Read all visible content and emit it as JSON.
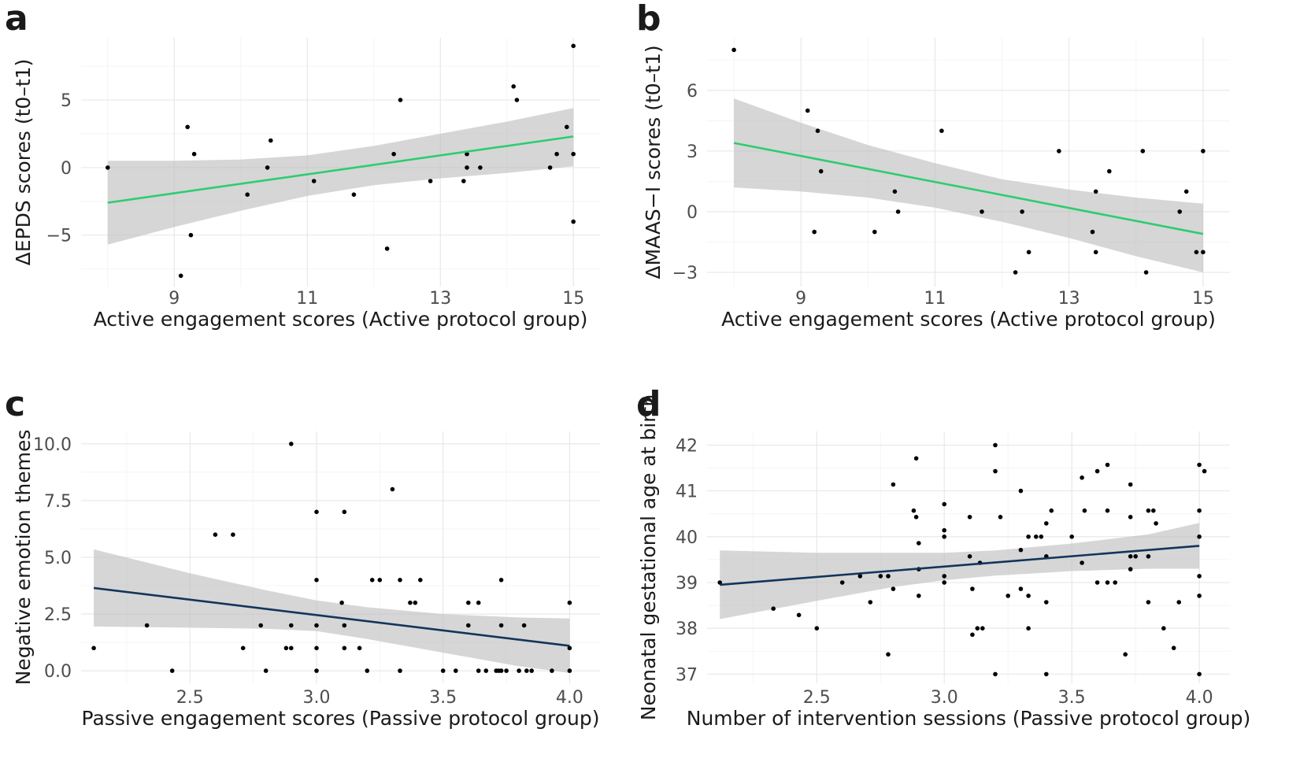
{
  "chart_data": [
    {
      "id": "a",
      "type": "scatter",
      "panel_letter": "a",
      "xlabel": "Active engagement scores (Active protocol group)",
      "ylabel": "ΔEPDS scores (t0–t1)",
      "xlim": [
        7.6,
        15.4
      ],
      "ylim": [
        -8.8,
        9.6
      ],
      "x_ticks": [
        9,
        11,
        13,
        15
      ],
      "x_tick_labels": [
        "9",
        "11",
        "13",
        "15"
      ],
      "y_ticks": [
        -5,
        0,
        5
      ],
      "y_tick_labels": [
        "−5",
        "0",
        "5"
      ],
      "line_color": "#2ecc71",
      "fit": {
        "x0": 8,
        "y0": -2.6,
        "x1": 15,
        "y1": 2.3
      },
      "ci": {
        "x": [
          8,
          9,
          10,
          11,
          12,
          13,
          14,
          15
        ],
        "lower": [
          -5.7,
          -4.4,
          -3.2,
          -2.1,
          -1.3,
          -0.8,
          -0.4,
          0.1
        ],
        "upper": [
          0.5,
          0.5,
          0.6,
          0.9,
          1.6,
          2.5,
          3.4,
          4.4
        ]
      },
      "points": [
        [
          8,
          0
        ],
        [
          9.1,
          -8
        ],
        [
          9.2,
          3
        ],
        [
          9.25,
          -5
        ],
        [
          9.3,
          1
        ],
        [
          10.1,
          -2
        ],
        [
          10.4,
          0
        ],
        [
          10.45,
          2
        ],
        [
          11.1,
          -1
        ],
        [
          11.7,
          -2
        ],
        [
          12.2,
          -6
        ],
        [
          12.3,
          1
        ],
        [
          12.4,
          5
        ],
        [
          12.85,
          -1
        ],
        [
          13.35,
          -1
        ],
        [
          13.4,
          1
        ],
        [
          13.4,
          0
        ],
        [
          13.6,
          0
        ],
        [
          14.1,
          6
        ],
        [
          14.15,
          5
        ],
        [
          14.65,
          0
        ],
        [
          14.75,
          1
        ],
        [
          14.9,
          3
        ],
        [
          15,
          9
        ],
        [
          15,
          1
        ],
        [
          15,
          -4
        ]
      ]
    },
    {
      "id": "b",
      "type": "scatter",
      "panel_letter": "b",
      "xlabel": "Active engagement scores (Active protocol group)",
      "ylabel": "ΔMAAS−I scores (t0–t1)",
      "xlim": [
        7.6,
        15.4
      ],
      "ylim": [
        -3.7,
        8.6
      ],
      "x_ticks": [
        9,
        11,
        13,
        15
      ],
      "x_tick_labels": [
        "9",
        "11",
        "13",
        "15"
      ],
      "y_ticks": [
        -3,
        0,
        3,
        6
      ],
      "y_tick_labels": [
        "−3",
        "0",
        "3",
        "6"
      ],
      "line_color": "#2ecc71",
      "fit": {
        "x0": 8,
        "y0": 3.4,
        "x1": 15,
        "y1": -1.1
      },
      "ci": {
        "x": [
          8,
          9,
          10,
          11,
          12,
          13,
          14,
          15
        ],
        "lower": [
          1.2,
          1.0,
          0.7,
          0.2,
          -0.5,
          -1.3,
          -2.2,
          -3.0
        ],
        "upper": [
          5.6,
          4.4,
          3.3,
          2.4,
          1.6,
          1.1,
          0.7,
          0.4
        ]
      },
      "points": [
        [
          8,
          8
        ],
        [
          9.1,
          5
        ],
        [
          9.2,
          -1
        ],
        [
          9.25,
          4
        ],
        [
          9.3,
          2
        ],
        [
          10.1,
          -1
        ],
        [
          10.4,
          1
        ],
        [
          10.45,
          0
        ],
        [
          11.1,
          4
        ],
        [
          11.7,
          0
        ],
        [
          12.2,
          -3
        ],
        [
          12.3,
          0
        ],
        [
          12.4,
          -2
        ],
        [
          12.85,
          3
        ],
        [
          13.35,
          -1
        ],
        [
          13.4,
          1
        ],
        [
          13.4,
          -2
        ],
        [
          13.6,
          2
        ],
        [
          14.1,
          3
        ],
        [
          14.15,
          -3
        ],
        [
          14.65,
          0
        ],
        [
          14.75,
          1
        ],
        [
          14.9,
          -2
        ],
        [
          15,
          3
        ],
        [
          15,
          -2
        ]
      ]
    },
    {
      "id": "c",
      "type": "scatter",
      "panel_letter": "c",
      "xlabel": "Passive engagement scores (Passive protocol group)",
      "ylabel": "Negative emotion themes",
      "xlim": [
        2.07,
        4.12
      ],
      "ylim": [
        -0.55,
        10.55
      ],
      "x_ticks": [
        2.5,
        3.0,
        3.5,
        4.0
      ],
      "x_tick_labels": [
        "2.5",
        "3.0",
        "3.5",
        "4.0"
      ],
      "y_ticks": [
        0,
        2.5,
        5,
        7.5,
        10
      ],
      "y_tick_labels": [
        "0.0",
        "2.5",
        "5.0",
        "7.5",
        "10.0"
      ],
      "line_color": "#12355b",
      "fit": {
        "x0": 2.12,
        "y0": 3.65,
        "x1": 4.0,
        "y1": 1.1
      },
      "ci": {
        "x": [
          2.12,
          2.5,
          2.8,
          3.0,
          3.2,
          3.5,
          3.8,
          4.0
        ],
        "lower": [
          1.95,
          1.9,
          1.85,
          1.75,
          1.4,
          0.8,
          0.2,
          -0.1
        ],
        "upper": [
          5.35,
          4.3,
          3.55,
          3.1,
          2.8,
          2.5,
          2.35,
          2.3
        ]
      },
      "points": [
        [
          2.12,
          1
        ],
        [
          2.33,
          2
        ],
        [
          2.43,
          0
        ],
        [
          2.6,
          6
        ],
        [
          2.67,
          6
        ],
        [
          2.71,
          1
        ],
        [
          2.78,
          2
        ],
        [
          2.8,
          0
        ],
        [
          2.88,
          1
        ],
        [
          2.9,
          1
        ],
        [
          2.9,
          10
        ],
        [
          2.9,
          2
        ],
        [
          3.0,
          7
        ],
        [
          3.0,
          4
        ],
        [
          3.0,
          2
        ],
        [
          3.0,
          1
        ],
        [
          3.0,
          0
        ],
        [
          3.1,
          3
        ],
        [
          3.11,
          7
        ],
        [
          3.11,
          2
        ],
        [
          3.11,
          1
        ],
        [
          3.17,
          1
        ],
        [
          3.2,
          0
        ],
        [
          3.22,
          4
        ],
        [
          3.25,
          4
        ],
        [
          3.3,
          8
        ],
        [
          3.33,
          4
        ],
        [
          3.33,
          0
        ],
        [
          3.37,
          3
        ],
        [
          3.39,
          3
        ],
        [
          3.41,
          4
        ],
        [
          3.5,
          0
        ],
        [
          3.55,
          0
        ],
        [
          3.6,
          3
        ],
        [
          3.6,
          2
        ],
        [
          3.64,
          3
        ],
        [
          3.64,
          0
        ],
        [
          3.67,
          0
        ],
        [
          3.71,
          0
        ],
        [
          3.72,
          0
        ],
        [
          3.73,
          0
        ],
        [
          3.73,
          4
        ],
        [
          3.73,
          2
        ],
        [
          3.75,
          0
        ],
        [
          3.8,
          0
        ],
        [
          3.82,
          2
        ],
        [
          3.83,
          0
        ],
        [
          3.85,
          0
        ],
        [
          3.93,
          0
        ],
        [
          4.0,
          3
        ],
        [
          4.0,
          1
        ],
        [
          4.0,
          0
        ]
      ]
    },
    {
      "id": "d",
      "type": "scatter",
      "panel_letter": "d",
      "xlabel": "Number of intervention sessions (Passive protocol group)",
      "ylabel": "Neonatal gestational age at birth",
      "xlim": [
        2.07,
        4.12
      ],
      "ylim": [
        36.8,
        42.3
      ],
      "x_ticks": [
        2.5,
        3.0,
        3.5,
        4.0
      ],
      "x_tick_labels": [
        "2.5",
        "3.0",
        "3.5",
        "4.0"
      ],
      "y_ticks": [
        37,
        38,
        39,
        40,
        41,
        42
      ],
      "y_tick_labels": [
        "37",
        "38",
        "39",
        "40",
        "41",
        "42"
      ],
      "line_color": "#12355b",
      "fit": {
        "x0": 2.12,
        "y0": 38.95,
        "x1": 4.0,
        "y1": 39.8
      },
      "ci": {
        "x": [
          2.12,
          2.5,
          2.8,
          3.0,
          3.2,
          3.5,
          3.8,
          4.0
        ],
        "lower": [
          38.2,
          38.6,
          38.9,
          39.05,
          39.15,
          39.25,
          39.3,
          39.3
        ],
        "upper": [
          39.7,
          39.65,
          39.65,
          39.65,
          39.7,
          39.85,
          40.05,
          40.3
        ]
      },
      "points": [
        [
          2.12,
          39
        ],
        [
          2.33,
          38.43
        ],
        [
          2.43,
          38.29
        ],
        [
          2.5,
          38
        ],
        [
          2.6,
          39
        ],
        [
          2.67,
          39.14
        ],
        [
          2.71,
          38.57
        ],
        [
          2.75,
          39.14
        ],
        [
          2.78,
          37.43
        ],
        [
          2.78,
          39.14
        ],
        [
          2.8,
          41.14
        ],
        [
          2.8,
          38.86
        ],
        [
          2.88,
          40.57
        ],
        [
          2.89,
          41.71
        ],
        [
          2.89,
          40.43
        ],
        [
          2.9,
          39.86
        ],
        [
          2.9,
          39.29
        ],
        [
          2.9,
          38.71
        ],
        [
          3.0,
          40.71
        ],
        [
          3.0,
          40.14
        ],
        [
          3.0,
          40
        ],
        [
          3.0,
          39.14
        ],
        [
          3.0,
          39
        ],
        [
          3.1,
          40.43
        ],
        [
          3.1,
          39.57
        ],
        [
          3.11,
          38.86
        ],
        [
          3.11,
          37.86
        ],
        [
          3.13,
          38
        ],
        [
          3.14,
          39.43
        ],
        [
          3.15,
          38
        ],
        [
          3.2,
          42
        ],
        [
          3.2,
          41.43
        ],
        [
          3.2,
          37
        ],
        [
          3.22,
          40.43
        ],
        [
          3.25,
          38.71
        ],
        [
          3.3,
          41
        ],
        [
          3.3,
          39.71
        ],
        [
          3.3,
          38.86
        ],
        [
          3.33,
          40
        ],
        [
          3.33,
          38.71
        ],
        [
          3.33,
          38
        ],
        [
          3.36,
          40
        ],
        [
          3.38,
          40
        ],
        [
          3.4,
          40.29
        ],
        [
          3.4,
          39.57
        ],
        [
          3.4,
          38.57
        ],
        [
          3.4,
          37
        ],
        [
          3.42,
          40.57
        ],
        [
          3.5,
          40
        ],
        [
          3.54,
          41.29
        ],
        [
          3.55,
          40.57
        ],
        [
          3.54,
          39.43
        ],
        [
          3.6,
          41.43
        ],
        [
          3.6,
          39
        ],
        [
          3.64,
          41.57
        ],
        [
          3.64,
          40.57
        ],
        [
          3.64,
          39
        ],
        [
          3.67,
          39
        ],
        [
          3.71,
          37.43
        ],
        [
          3.73,
          41.14
        ],
        [
          3.73,
          40.43
        ],
        [
          3.73,
          39.57
        ],
        [
          3.73,
          39.29
        ],
        [
          3.75,
          39.57
        ],
        [
          3.8,
          40.57
        ],
        [
          3.8,
          39.57
        ],
        [
          3.8,
          38.57
        ],
        [
          3.82,
          40.57
        ],
        [
          3.83,
          40.29
        ],
        [
          3.86,
          38
        ],
        [
          3.9,
          37.57
        ],
        [
          3.92,
          38.57
        ],
        [
          4.0,
          41.57
        ],
        [
          4.0,
          40.57
        ],
        [
          4.0,
          40
        ],
        [
          4.0,
          39.14
        ],
        [
          4.0,
          38.71
        ],
        [
          4.0,
          37
        ],
        [
          4.02,
          41.43
        ]
      ]
    }
  ]
}
